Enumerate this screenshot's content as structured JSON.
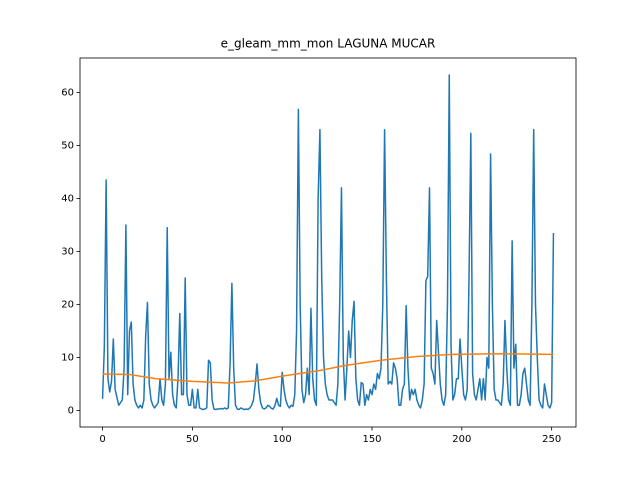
{
  "chart_data": {
    "type": "line",
    "title": "e_gleam_mm_mon LAGUNA MUCAR",
    "xlim": [
      -12.55,
      263.55
    ],
    "xticks": [
      0,
      50,
      100,
      150,
      200,
      250
    ],
    "ylim": [
      -3.1,
      66.5
    ],
    "yticks": [
      0,
      10,
      20,
      30,
      40,
      50,
      60
    ],
    "grid": false,
    "series": [
      {
        "color": "#1f77b4",
        "values": [
          2.2,
          12,
          43.5,
          6,
          3.5,
          5.5,
          13.5,
          4,
          2.5,
          1,
          1.5,
          2,
          8,
          35,
          3,
          15,
          16.7,
          5,
          2,
          1,
          0.5,
          1,
          0.5,
          2,
          14,
          20.4,
          5,
          2,
          1,
          0.5,
          1,
          1.5,
          6,
          2,
          1,
          5,
          34.5,
          6,
          11,
          3,
          1,
          0.5,
          6,
          18.3,
          3,
          3,
          25,
          3,
          1,
          1,
          4,
          0.5,
          0.5,
          4,
          0.5,
          0.3,
          0.2,
          0.3,
          0.5,
          9.5,
          9,
          2,
          0.3,
          0.2,
          0.3,
          0.3,
          0.4,
          0.3,
          0.5,
          0.3,
          0.5,
          9,
          24,
          8,
          1,
          0.3,
          0.2,
          0.5,
          0.3,
          0.2,
          0.3,
          0.2,
          0.5,
          1,
          2,
          5,
          8.8,
          4,
          1.5,
          0.5,
          0.3,
          0.5,
          1,
          0.8,
          0.4,
          0.3,
          1,
          2.3,
          1,
          0.8,
          7.2,
          4,
          2,
          1,
          0.5,
          1,
          0.8,
          3,
          15,
          56.8,
          20,
          4,
          1.5,
          3,
          8,
          3,
          19.3,
          6,
          2,
          1,
          40,
          53,
          25,
          10,
          5,
          3,
          2,
          2,
          2,
          1.5,
          1,
          5,
          20,
          42,
          10,
          2,
          8,
          15,
          10,
          17,
          20.6,
          6,
          2,
          1,
          5.3,
          5,
          1,
          3,
          2,
          4,
          3,
          5,
          4,
          7,
          6,
          8,
          20,
          53,
          25,
          5,
          5.5,
          5,
          9,
          8,
          6,
          1,
          1,
          4,
          5,
          19.8,
          8,
          2,
          4,
          3,
          4,
          2,
          1,
          0.5,
          2,
          5,
          24.5,
          25.3,
          42,
          8,
          7,
          5,
          17,
          11,
          5,
          2,
          1,
          3,
          20,
          63.3,
          12,
          2,
          3,
          6,
          6,
          13.5,
          8,
          3,
          2,
          4,
          25,
          52.3,
          7,
          3,
          2,
          4,
          6,
          2,
          6,
          2,
          10,
          8,
          48.4,
          20,
          4,
          2,
          2,
          1.5,
          1,
          5,
          17,
          8,
          2,
          1,
          32,
          8,
          12.5,
          1,
          1,
          3,
          7,
          8,
          5,
          2,
          1,
          20,
          53,
          20,
          10,
          2,
          1,
          0.5,
          5,
          3,
          1,
          0.5,
          1.5,
          33.5
        ]
      },
      {
        "color": "#ff7f0e",
        "x": [
          0,
          15,
          30,
          50,
          70,
          85,
          100,
          120,
          135,
          155,
          175,
          195,
          215,
          230,
          251
        ],
        "values": [
          6.9,
          6.8,
          6.0,
          5.5,
          5.2,
          5.6,
          6.5,
          7.5,
          8.5,
          9.5,
          10.2,
          10.6,
          10.7,
          10.7,
          10.6
        ]
      }
    ]
  }
}
